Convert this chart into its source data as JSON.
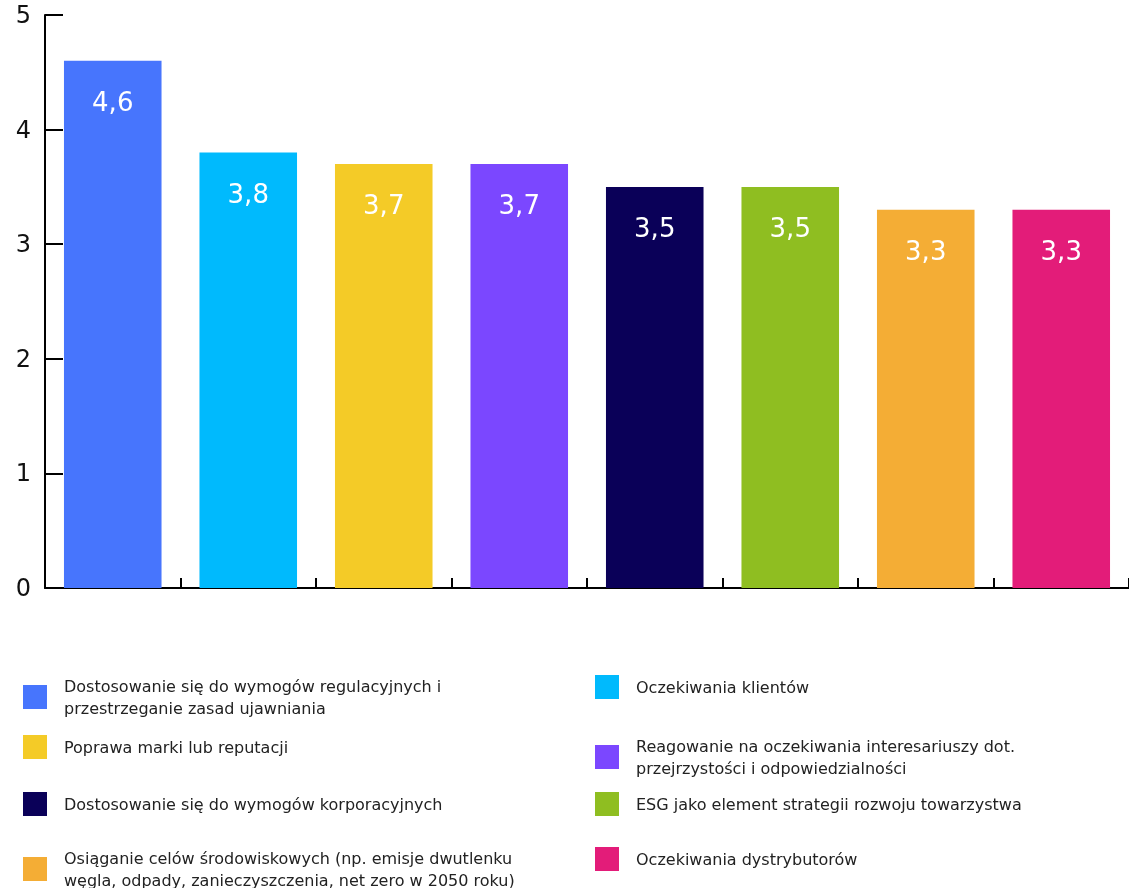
{
  "chart_data": {
    "type": "bar",
    "categories": [
      null,
      null,
      null,
      null,
      null,
      null,
      null,
      null
    ],
    "series": [
      {
        "name": "Dostosowanie się do wymogów regulacyjnych i przestrzeganie zasad ujawniania",
        "color": "#4775fd",
        "values": [
          4.6,
          null,
          null,
          null,
          null,
          null,
          null,
          null
        ],
        "value_labels": [
          "4,6",
          null,
          null,
          null,
          null,
          null,
          null,
          null
        ]
      },
      {
        "name": "Oczekiwania klientów",
        "color": "#00bafd",
        "values": [
          null,
          3.8,
          null,
          null,
          null,
          null,
          null,
          null
        ],
        "value_labels": [
          null,
          "3,8",
          null,
          null,
          null,
          null,
          null,
          null
        ]
      },
      {
        "name": "Poprawa marki lub reputacji",
        "color": "#f4cb27",
        "values": [
          null,
          null,
          3.7,
          null,
          null,
          null,
          null,
          null
        ],
        "value_labels": [
          null,
          null,
          "3,7",
          null,
          null,
          null,
          null,
          null
        ]
      },
      {
        "name": "Reagowanie na oczekiwania interesariuszy dot. przejrzystości i odpowiedzialności",
        "color": "#7b47ff",
        "values": [
          null,
          null,
          null,
          3.7,
          null,
          null,
          null,
          null
        ],
        "value_labels": [
          null,
          null,
          null,
          "3,7",
          null,
          null,
          null,
          null
        ]
      },
      {
        "name": "Dostosowanie się do wymogów korporacyjnych",
        "color": "#0a0058",
        "values": [
          null,
          null,
          null,
          null,
          3.5,
          null,
          null,
          null
        ],
        "value_labels": [
          null,
          null,
          null,
          null,
          "3,5",
          null,
          null,
          null
        ]
      },
      {
        "name": "ESG jako element strategii rozwoju towarzystwa",
        "color": "#8fbe21",
        "values": [
          null,
          null,
          null,
          null,
          null,
          3.5,
          null,
          null
        ],
        "value_labels": [
          null,
          null,
          null,
          null,
          null,
          "3,5",
          null,
          null
        ]
      },
      {
        "name": "Osiąganie celów środowiskowych (np. emisje dwutlenku węgla, odpady, zanieczyszczenia, net zero w 2050 roku)",
        "color": "#f4ad35",
        "values": [
          null,
          null,
          null,
          null,
          null,
          null,
          3.3,
          null
        ],
        "value_labels": [
          null,
          null,
          null,
          null,
          null,
          null,
          "3,3",
          null
        ]
      },
      {
        "name": "Oczekiwania dystrybutorów",
        "color": "#e31c79",
        "values": [
          null,
          null,
          null,
          null,
          null,
          null,
          null,
          3.3
        ],
        "value_labels": [
          null,
          null,
          null,
          null,
          null,
          null,
          null,
          "3,3"
        ]
      }
    ],
    "ylim": [
      0,
      5
    ],
    "yticks": [
      0,
      1,
      2,
      3,
      4,
      5
    ],
    "grid": false,
    "legend": "bottom"
  }
}
